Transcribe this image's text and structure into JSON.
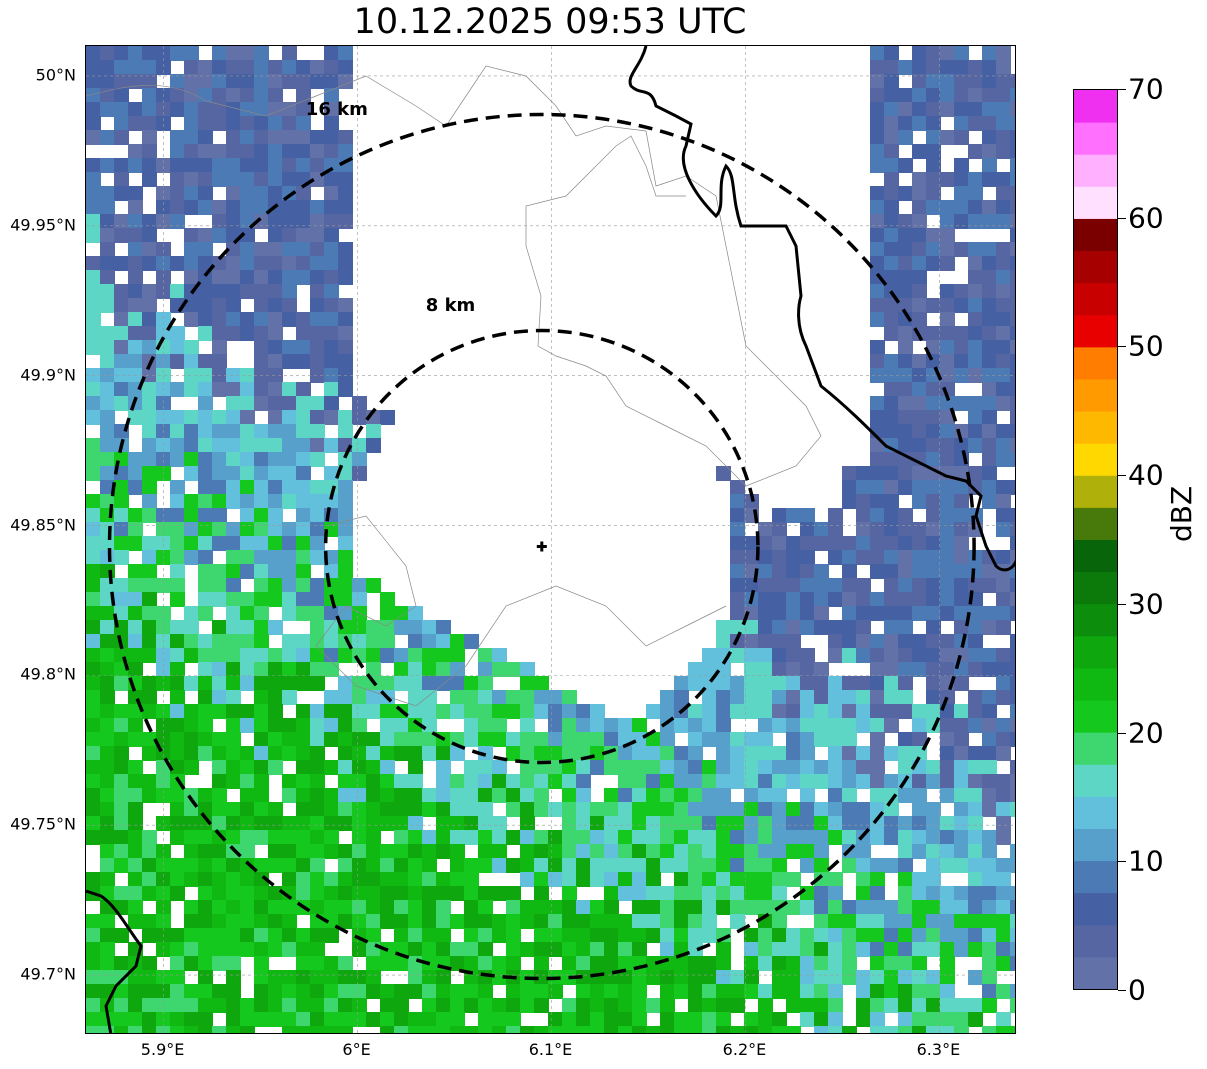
{
  "title": "10.12.2025 09:53 UTC",
  "map": {
    "lat_range": [
      49.68,
      50.01
    ],
    "lon_range": [
      5.86,
      6.34
    ],
    "lat_ticks": [
      {
        "value": 50.0,
        "label": "50°N"
      },
      {
        "value": 49.95,
        "label": "49.95°N"
      },
      {
        "value": 49.9,
        "label": "49.9°N"
      },
      {
        "value": 49.85,
        "label": "49.85°N"
      },
      {
        "value": 49.8,
        "label": "49.8°N"
      },
      {
        "value": 49.75,
        "label": "49.75°N"
      },
      {
        "value": 49.7,
        "label": "49.7°N"
      }
    ],
    "lon_ticks": [
      {
        "value": 5.9,
        "label": "5.9°E"
      },
      {
        "value": 6.0,
        "label": "6°E"
      },
      {
        "value": 6.1,
        "label": "6.1°E"
      },
      {
        "value": 6.2,
        "label": "6.2°E"
      },
      {
        "value": 6.3,
        "label": "6.3°E"
      }
    ],
    "radar_site": {
      "lat": 49.843,
      "lon": 6.095
    },
    "range_rings": [
      {
        "radius_km": 8,
        "label": "8 km"
      },
      {
        "radius_km": 16,
        "label": "16 km"
      }
    ],
    "grid": true
  },
  "colorbar": {
    "label": "dBZ",
    "min": 0,
    "max": 70,
    "ticks": [
      {
        "value": 0,
        "label": "0"
      },
      {
        "value": 10,
        "label": "10"
      },
      {
        "value": 20,
        "label": "20"
      },
      {
        "value": 30,
        "label": "30"
      },
      {
        "value": 40,
        "label": "40"
      },
      {
        "value": 50,
        "label": "50"
      },
      {
        "value": 60,
        "label": "60"
      },
      {
        "value": 70,
        "label": "70"
      }
    ],
    "colors": [
      "#6272a8",
      "#5566a3",
      "#4560a3",
      "#4c7ab5",
      "#58a0cc",
      "#62c0dd",
      "#5ed6c6",
      "#3ed66e",
      "#14c81e",
      "#10b812",
      "#0ea70e",
      "#0c8e0c",
      "#0b7a0b",
      "#096509",
      "#477a0b",
      "#b0b00a",
      "#ffd800",
      "#ffb800",
      "#ff9a00",
      "#ff7d00",
      "#e80000",
      "#c80000",
      "#a60000",
      "#7a0000",
      "#ffe0ff",
      "#ffb0ff",
      "#ff70ff",
      "#f030f0"
    ]
  }
}
